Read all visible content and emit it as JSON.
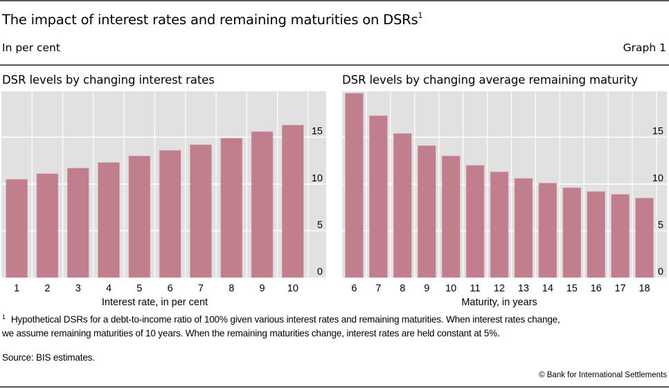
{
  "header": {
    "title": "The impact of interest rates and remaining maturities on DSRs",
    "title_footnote_marker": "1",
    "units": "In per cent",
    "graph_number": "Graph 1"
  },
  "colors": {
    "bar": "#c17f8e",
    "plot_background": "#e1e1e1",
    "gridline": "#ffffff",
    "rule": "#555555"
  },
  "chart_data": [
    {
      "type": "bar",
      "title": "DSR levels by changing interest rates",
      "xlabel": "Interest rate, in per cent",
      "ylabel": "",
      "categories": [
        "1",
        "2",
        "3",
        "4",
        "5",
        "6",
        "7",
        "8",
        "9",
        "10"
      ],
      "values": [
        10.5,
        11.1,
        11.7,
        12.3,
        13.0,
        13.6,
        14.2,
        14.9,
        15.6,
        16.3
      ],
      "ylim": [
        0,
        19.9
      ],
      "yticks": [
        0,
        5,
        10,
        15
      ],
      "ytick_labels": [
        "0",
        "5",
        "10",
        "15"
      ],
      "y_axis_side": "right",
      "grid": true
    },
    {
      "type": "bar",
      "title": "DSR levels by changing average remaining maturity",
      "xlabel": "Maturity, in years",
      "ylabel": "",
      "categories": [
        "6",
        "7",
        "8",
        "9",
        "10",
        "11",
        "12",
        "13",
        "14",
        "15",
        "16",
        "17",
        "18"
      ],
      "values": [
        19.7,
        17.3,
        15.4,
        14.1,
        13.0,
        12.0,
        11.3,
        10.6,
        10.1,
        9.6,
        9.2,
        8.9,
        8.5
      ],
      "ylim": [
        0,
        19.9
      ],
      "yticks": [
        0,
        5,
        10,
        15
      ],
      "ytick_labels": [
        "0",
        "5",
        "10",
        "15"
      ],
      "y_axis_side": "right",
      "grid": true
    }
  ],
  "footer": {
    "footnote_marker": "1",
    "footnote_line1": "Hypothetical DSRs for a debt-to-income ratio of 100% given various interest rates and remaining maturities. When interest rates change,",
    "footnote_line2": "we assume remaining maturities of 10 years. When the remaining maturities change, interest rates are held constant at 5%.",
    "source": "Source: BIS estimates.",
    "copyright": "© Bank for International Settlements"
  }
}
